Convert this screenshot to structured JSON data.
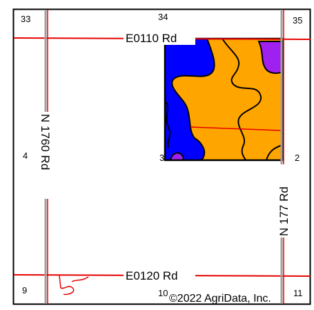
{
  "map": {
    "sections": [
      {
        "id": "33",
        "label": "33"
      },
      {
        "id": "34",
        "label": "34"
      },
      {
        "id": "35",
        "label": "35"
      },
      {
        "id": "4",
        "label": "4"
      },
      {
        "id": "3",
        "label": "3"
      },
      {
        "id": "2",
        "label": "2"
      },
      {
        "id": "9",
        "label": "9"
      },
      {
        "id": "10",
        "label": "10"
      },
      {
        "id": "11",
        "label": "11"
      }
    ],
    "roads": [
      {
        "id": "e0110",
        "label": "E0110 Rd"
      },
      {
        "id": "e0120",
        "label": "E0120 Rd"
      },
      {
        "id": "n1760",
        "label": "N 1760 Rd"
      },
      {
        "id": "n177",
        "label": "N 177 Rd"
      }
    ],
    "soil_colors": {
      "blue": "#0000ff",
      "orange": "#ffa500",
      "purple": "#a020f0"
    },
    "road_color": "#e60000",
    "copyright": "©2022 AgriData, Inc."
  }
}
